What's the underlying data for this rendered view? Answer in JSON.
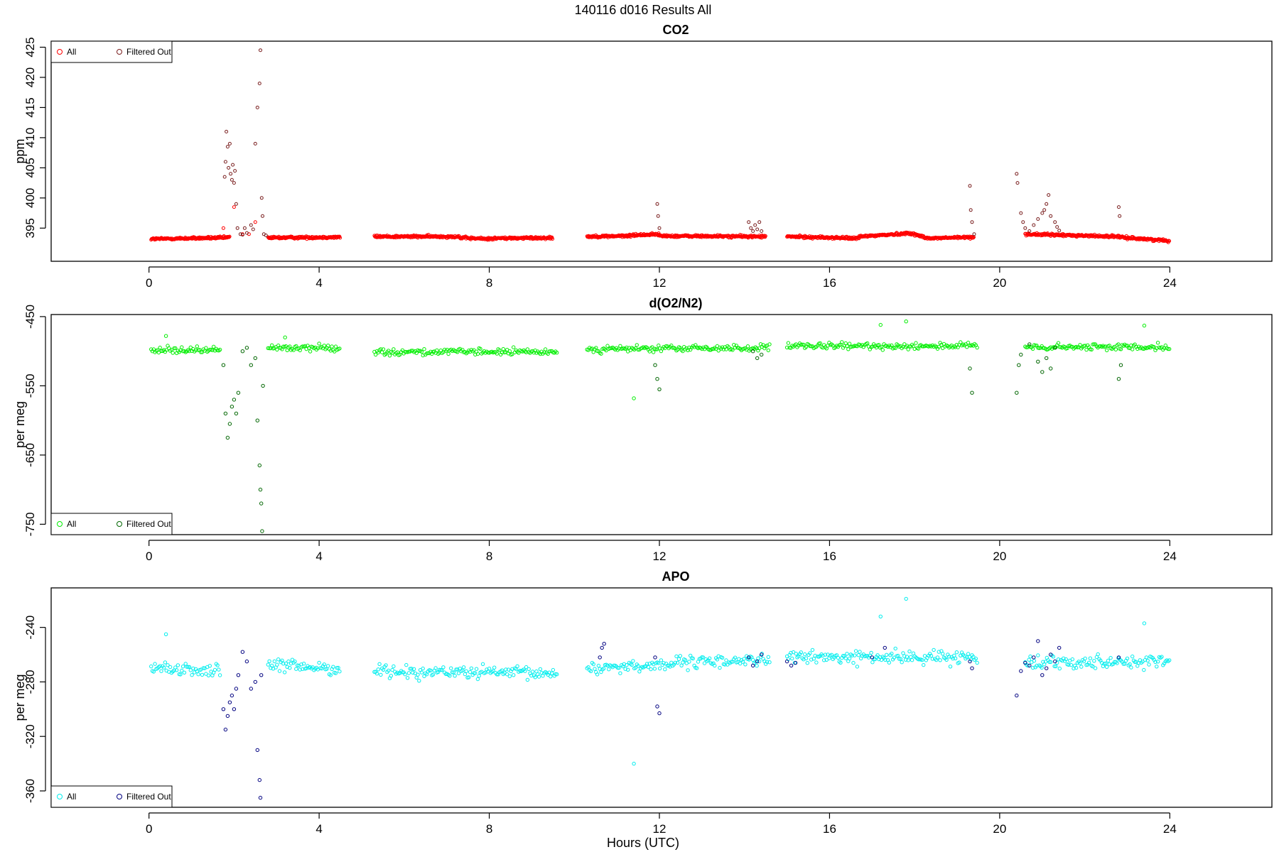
{
  "figure_title": "140116   d016   Results All",
  "x_axis_label": "Hours (UTC)",
  "chart_data": [
    {
      "type": "scatter",
      "title": "CO2",
      "xlabel": "",
      "ylabel": "ppm",
      "xlim": [
        -2.3,
        26.4
      ],
      "ylim": [
        389.5,
        426
      ],
      "x_ticks": [
        0,
        4,
        8,
        12,
        16,
        20,
        24
      ],
      "y_ticks": [
        395,
        400,
        405,
        410,
        415,
        420,
        425
      ],
      "legend_position": "top-left",
      "series": [
        {
          "name": "All",
          "color": "#ff0000",
          "segments": [
            {
              "x": [
                0.05,
                1.75
              ],
              "y": [
                393.2,
                393.4
              ]
            },
            {
              "x": [
                1.75,
                1.9
              ],
              "y": [
                393.4,
                393.5
              ]
            },
            {
              "x": [
                2.8,
                4.5
              ],
              "y": [
                393.4,
                393.5
              ]
            },
            {
              "x": [
                5.3,
                7.3
              ],
              "y": [
                393.6,
                393.6
              ]
            },
            {
              "x": [
                7.3,
                8.0
              ],
              "y": [
                393.4,
                393.2
              ]
            },
            {
              "x": [
                8.0,
                9.5
              ],
              "y": [
                393.3,
                393.4
              ]
            },
            {
              "x": [
                10.3,
                11.3
              ],
              "y": [
                393.6,
                393.7
              ]
            },
            {
              "x": [
                11.3,
                12.0
              ],
              "y": [
                393.8,
                394.0
              ]
            },
            {
              "x": [
                12.0,
                14.5
              ],
              "y": [
                393.7,
                393.6
              ]
            },
            {
              "x": [
                15.0,
                16.7
              ],
              "y": [
                393.6,
                393.3
              ]
            },
            {
              "x": [
                16.7,
                17.8
              ],
              "y": [
                393.6,
                394.1
              ]
            },
            {
              "x": [
                17.8,
                18.3
              ],
              "y": [
                394.3,
                393.4
              ]
            },
            {
              "x": [
                18.3,
                19.4
              ],
              "y": [
                393.3,
                393.5
              ]
            },
            {
              "x": [
                20.6,
                22.8
              ],
              "y": [
                394.0,
                393.6
              ]
            },
            {
              "x": [
                22.8,
                24.0
              ],
              "y": [
                393.5,
                392.9
              ]
            }
          ],
          "points": {
            "x": [
              1.75,
              2.0,
              2.2,
              2.35,
              2.5
            ],
            "y": [
              395,
              398.5,
              394,
              394,
              396
            ]
          }
        },
        {
          "name": "Filtered Out",
          "color": "#7a1f1f",
          "points": {
            "x": [
              1.78,
              1.8,
              1.82,
              1.85,
              1.87,
              1.9,
              1.92,
              1.95,
              1.97,
              2.0,
              2.02,
              2.05,
              2.08,
              2.15,
              2.2,
              2.25,
              2.3,
              2.4,
              2.45,
              2.5,
              2.55,
              2.6,
              2.62,
              2.65,
              2.67,
              2.7,
              2.75,
              11.95,
              11.97,
              12.0,
              14.1,
              14.15,
              14.2,
              14.25,
              14.3,
              14.35,
              14.4,
              19.3,
              19.32,
              19.35,
              19.4,
              20.4,
              20.42,
              20.5,
              20.55,
              20.6,
              20.7,
              20.8,
              20.9,
              21.0,
              21.05,
              21.1,
              21.15,
              21.2,
              21.3,
              21.35,
              21.4,
              22.8,
              22.82
            ],
            "y": [
              403.5,
              406,
              411,
              408.5,
              405,
              409,
              404,
              403,
              405.5,
              402.5,
              404.5,
              399,
              395,
              394,
              393.9,
              395,
              394.2,
              395.5,
              394.8,
              409,
              415,
              419,
              424.5,
              400,
              397,
              394,
              393.8,
              399,
              397,
              395,
              396,
              395,
              394.5,
              395.5,
              394.8,
              396,
              394.5,
              402,
              398,
              396,
              394,
              404,
              402.5,
              397.5,
              396,
              395,
              394.5,
              395.5,
              396.5,
              397.5,
              398,
              399,
              400.5,
              397,
              396,
              395.2,
              394.6,
              398.5,
              397
            ]
          }
        }
      ]
    },
    {
      "type": "scatter",
      "title": "d(O2/N2)",
      "xlabel": "",
      "ylabel": "per meg",
      "xlim": [
        -2.3,
        26.4
      ],
      "ylim": [
        -765,
        -447
      ],
      "x_ticks": [
        0,
        4,
        8,
        12,
        16,
        20,
        24
      ],
      "y_ticks": [
        -450,
        -550,
        -650,
        -750
      ],
      "legend_position": "bottom-left",
      "series": [
        {
          "name": "All",
          "color": "#00ee00",
          "segments": [
            {
              "x": [
                0.05,
                1.7
              ],
              "y": [
                -498,
                -498
              ]
            },
            {
              "x": [
                2.8,
                4.5
              ],
              "y": [
                -495,
                -495
              ]
            },
            {
              "x": [
                5.3,
                9.6
              ],
              "y": [
                -501,
                -501
              ]
            },
            {
              "x": [
                10.3,
                14.6
              ],
              "y": [
                -497,
                -495
              ]
            },
            {
              "x": [
                15.0,
                19.5
              ],
              "y": [
                -493,
                -492
              ]
            },
            {
              "x": [
                20.6,
                24.0
              ],
              "y": [
                -495,
                -493
              ]
            }
          ],
          "points": {
            "x": [
              0.4,
              3.2,
              11.4,
              17.2,
              17.8,
              23.4
            ],
            "y": [
              -478,
              -480,
              -568,
              -462,
              -457,
              -463
            ]
          }
        },
        {
          "name": "Filtered Out",
          "color": "#006600",
          "points": {
            "x": [
              1.75,
              1.8,
              1.85,
              1.9,
              1.95,
              2.0,
              2.05,
              2.1,
              2.2,
              2.3,
              2.4,
              2.5,
              2.55,
              2.6,
              2.62,
              2.64,
              2.66,
              2.68,
              11.9,
              11.95,
              12.0,
              14.2,
              14.3,
              14.4,
              19.3,
              19.35,
              20.4,
              20.45,
              20.5,
              20.7,
              20.9,
              21.0,
              21.1,
              21.2,
              21.3,
              22.8,
              22.85
            ],
            "y": [
              -520,
              -590,
              -625,
              -605,
              -580,
              -570,
              -590,
              -560,
              -500,
              -495,
              -520,
              -510,
              -600,
              -665,
              -700,
              -720,
              -760,
              -550,
              -520,
              -540,
              -555,
              -500,
              -510,
              -505,
              -525,
              -560,
              -560,
              -520,
              -505,
              -490,
              -515,
              -530,
              -510,
              -525,
              -495,
              -540,
              -520
            ]
          }
        }
      ]
    },
    {
      "type": "scatter",
      "title": "APO",
      "xlabel": "Hours (UTC)",
      "ylabel": "per meg",
      "xlim": [
        -2.3,
        26.4
      ],
      "ylim": [
        -372,
        -211
      ],
      "x_ticks": [
        0,
        4,
        8,
        12,
        16,
        20,
        24
      ],
      "y_ticks": [
        -240,
        -280,
        -320,
        -360
      ],
      "legend_position": "bottom-left",
      "series": [
        {
          "name": "All",
          "color": "#00eeee",
          "segments": [
            {
              "x": [
                0.05,
                1.7
              ],
              "y": [
                -270,
                -272
              ]
            },
            {
              "x": [
                2.8,
                4.5
              ],
              "y": [
                -268,
                -270
              ]
            },
            {
              "x": [
                5.3,
                9.6
              ],
              "y": [
                -272,
                -274
              ]
            },
            {
              "x": [
                10.3,
                14.6
              ],
              "y": [
                -270,
                -263
              ]
            },
            {
              "x": [
                15.0,
                19.5
              ],
              "y": [
                -262,
                -262
              ]
            },
            {
              "x": [
                20.6,
                24.0
              ],
              "y": [
                -265,
                -265
              ]
            }
          ],
          "points": {
            "x": [
              0.4,
              11.4,
              17.2,
              17.8,
              23.4
            ],
            "y": [
              -245,
              -340,
              -232,
              -219,
              -237
            ]
          }
        },
        {
          "name": "Filtered Out",
          "color": "#000080",
          "points": {
            "x": [
              1.75,
              1.8,
              1.85,
              1.9,
              1.95,
              2.0,
              2.05,
              2.1,
              2.2,
              2.3,
              2.4,
              2.5,
              2.55,
              2.6,
              2.62,
              2.64,
              10.6,
              10.65,
              10.7,
              11.9,
              11.95,
              12.0,
              14.1,
              14.2,
              14.3,
              14.4,
              15.0,
              15.1,
              15.2,
              17.0,
              17.3,
              19.3,
              19.35,
              20.4,
              20.5,
              20.6,
              20.7,
              20.8,
              20.9,
              21.0,
              21.1,
              21.2,
              21.3,
              21.4,
              22.8
            ],
            "y": [
              -300,
              -315,
              -305,
              -295,
              -290,
              -300,
              -285,
              -275,
              -258,
              -265,
              -285,
              -280,
              -330,
              -352,
              -365,
              -275,
              -262,
              -255,
              -252,
              -262,
              -298,
              -303,
              -262,
              -268,
              -265,
              -260,
              -265,
              -268,
              -266,
              -262,
              -255,
              -265,
              -270,
              -290,
              -272,
              -266,
              -268,
              -262,
              -250,
              -275,
              -270,
              -260,
              -265,
              -255,
              -262
            ]
          }
        }
      ]
    }
  ]
}
